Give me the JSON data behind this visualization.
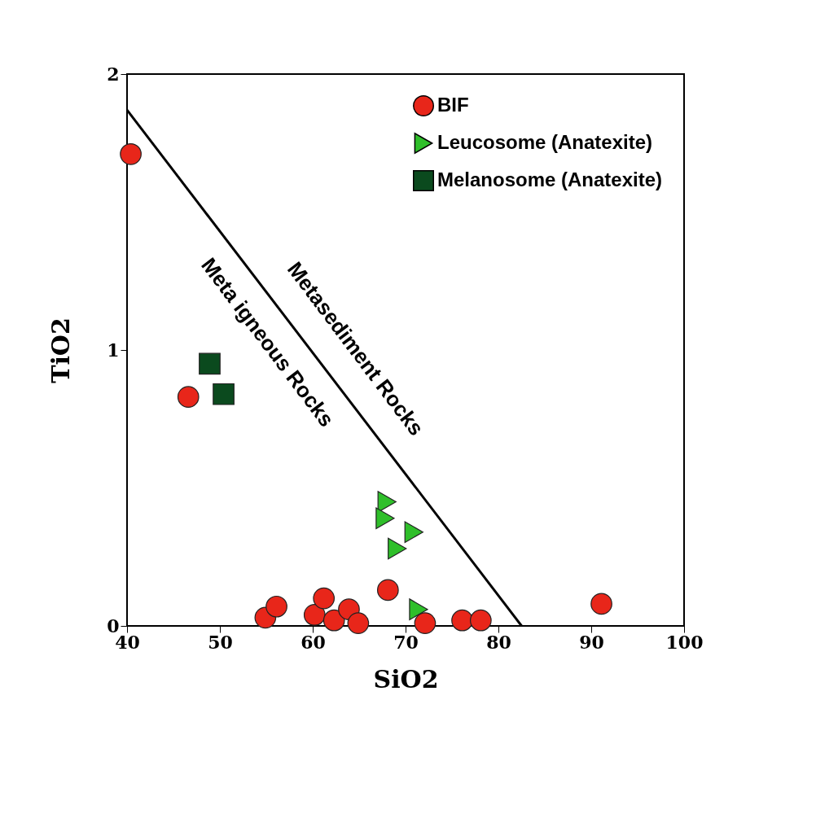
{
  "chart_data": {
    "type": "scatter",
    "xlabel": "SiO2",
    "ylabel": "TiO2",
    "xlim": [
      40,
      100
    ],
    "xticks": [
      40,
      50,
      60,
      70,
      80,
      90,
      100
    ],
    "ylim": [
      0,
      2
    ],
    "yticks": [
      0,
      1,
      2
    ],
    "grid": false,
    "legend": "top right",
    "series": [
      {
        "name": "BIF",
        "color": "#e8261a",
        "marker": "circle",
        "x": [
          40.4,
          46.6,
          54.9,
          56.1,
          60.2,
          61.2,
          62.3,
          63.9,
          64.9,
          68.1,
          72.1,
          76.1,
          78.1,
          91.1
        ],
        "values": [
          1.71,
          0.83,
          0.03,
          0.07,
          0.04,
          0.1,
          0.02,
          0.06,
          0.01,
          0.13,
          0.01,
          0.02,
          0.02,
          0.08
        ]
      },
      {
        "name": "Leucosome (Anatexite)",
        "color": "#2fbf2a",
        "marker": "triangle",
        "x": [
          68.0,
          67.8,
          70.9,
          69.1,
          71.4
        ],
        "values": [
          0.45,
          0.39,
          0.34,
          0.28,
          0.06
        ]
      },
      {
        "name": "Melanosome (Anatexite)",
        "color": "#0b4a1e",
        "marker": "square",
        "x": [
          48.9,
          50.4
        ],
        "values": [
          0.95,
          0.84
        ]
      },
      {
        "type": "line",
        "color": "#000000",
        "marker": "none",
        "x": [
          40,
          82.5
        ],
        "values": [
          1.87,
          0
        ]
      }
    ],
    "annotations": [
      "Metasediment Rocks",
      "Meta igneous Rocks"
    ]
  }
}
